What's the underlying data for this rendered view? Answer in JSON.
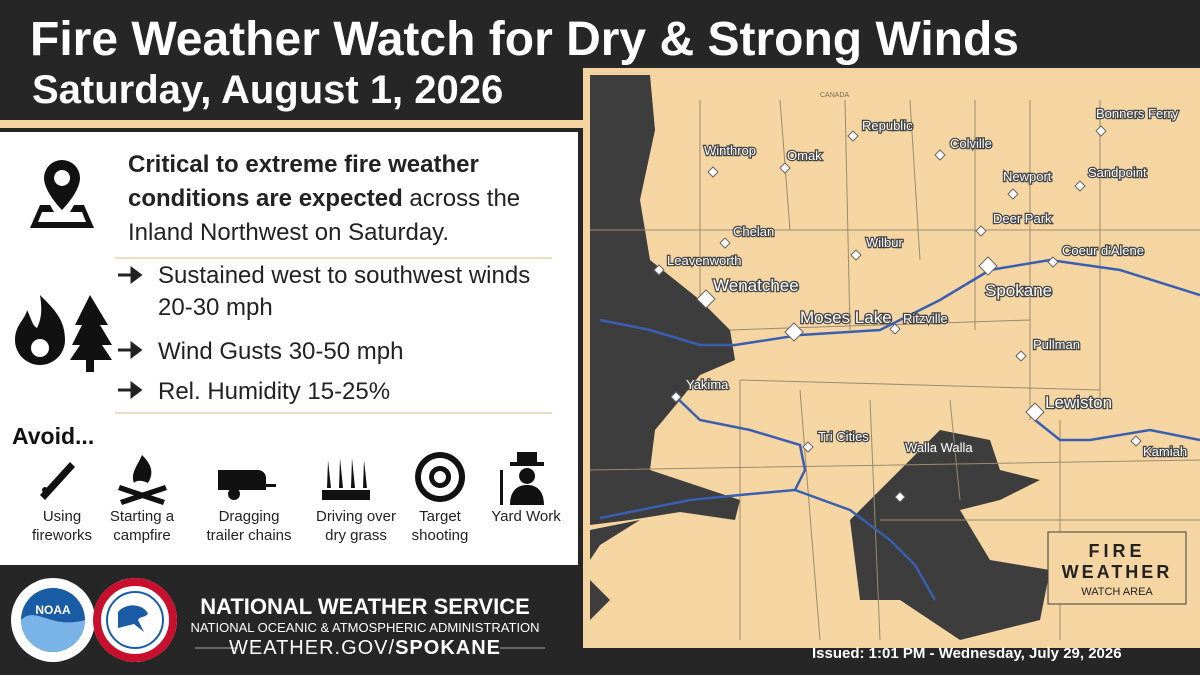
{
  "header": {
    "title": "Fire Weather Watch for Dry & Strong Winds",
    "date": "Saturday, August 1, 2026"
  },
  "summary": {
    "bold": "Critical to extreme fire weather conditions are expected",
    "rest": "across the Inland Northwest on Saturday."
  },
  "details": [
    "Sustained west to southwest winds 20-30 mph",
    "Wind Gusts 30-50 mph",
    "Rel. Humidity 15-25%"
  ],
  "avoid": {
    "heading": "Avoid...",
    "items": [
      "Using fireworks",
      "Starting a campfire",
      "Dragging trailer chains",
      "Driving over dry grass",
      "Target shooting",
      "Yard Work"
    ]
  },
  "footer": {
    "noaa_logo": "NOAA",
    "agency": "NATIONAL WEATHER SERVICE",
    "parent": "NATIONAL OCEANIC & ATMOSPHERIC ADMINISTRATION",
    "website_prefix": "WEATHER.GOV/",
    "website_office": "SPOKANE",
    "issued": "Issued: 1:01 PM - Wednesday, July 29, 2026"
  },
  "map": {
    "border_label": "CANADA",
    "cities": [
      "Winthrop",
      "Omak",
      "Republic",
      "Colville",
      "Bonners Ferry",
      "Newport",
      "Sandpoint",
      "Chelan",
      "Leavenworth",
      "Wilbur",
      "Deer Park",
      "Coeur d'Alene",
      "Spokane",
      "Wenatchee",
      "Moses Lake",
      "Ritzville",
      "Pullman",
      "Yakima",
      "Lewiston",
      "Tri Cities",
      "Walla Walla",
      "Kamiah"
    ],
    "legend": {
      "line1": "FIRE",
      "line2": "WEATHER",
      "line3": "WATCH AREA"
    }
  }
}
